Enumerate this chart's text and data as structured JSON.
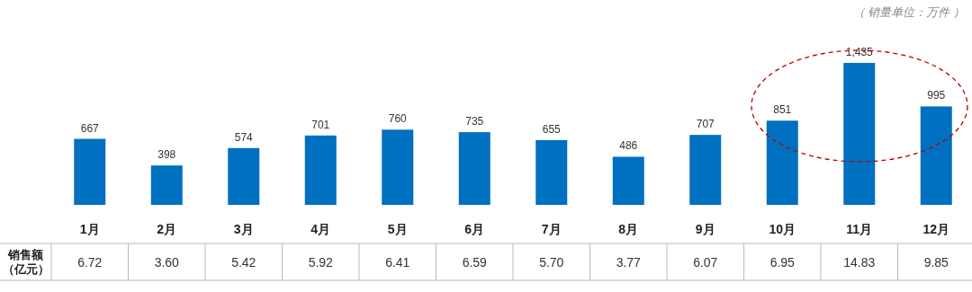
{
  "chart_data": [
    {
      "type": "bar",
      "annotations": [
        "（ 销量单位：万件 ）"
      ],
      "categories": [
        "1月",
        "2月",
        "3月",
        "4月",
        "5月",
        "6月",
        "7月",
        "8月",
        "9月",
        "10月",
        "11月",
        "12月"
      ],
      "values": [
        667,
        398,
        574,
        701,
        760,
        735,
        655,
        486,
        707,
        851,
        1435,
        995
      ],
      "value_labels": [
        "667",
        "398",
        "574",
        "701",
        "760",
        "735",
        "655",
        "486",
        "707",
        "851",
        "1,435",
        "995"
      ],
      "color": "#0070c0"
    },
    {
      "type": "other",
      "ylabel": "销售额（亿元）",
      "values": [
        6.72,
        3.6,
        5.42,
        5.92,
        6.41,
        6.59,
        5.7,
        3.77,
        6.07,
        6.95,
        14.83,
        9.85
      ],
      "value_labels": [
        "6.72",
        "3.60",
        "5.42",
        "5.92",
        "6.41",
        "6.59",
        "5.70",
        "3.77",
        "6.07",
        "6.95",
        "14.83",
        "9.85"
      ]
    }
  ]
}
